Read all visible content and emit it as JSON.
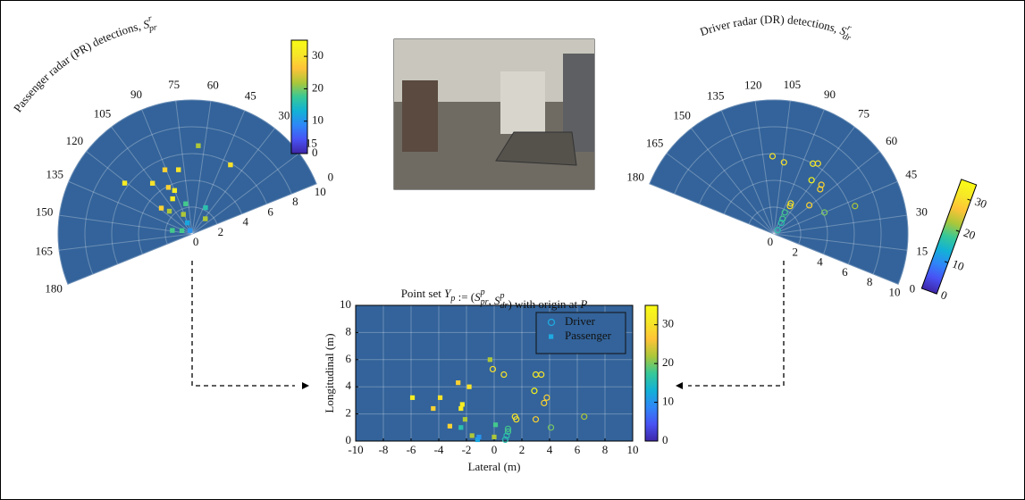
{
  "chart_data": [
    {
      "type": "polar-scatter",
      "title_parts": [
        {
          "text": "Passenger radar (PR) detections, "
        },
        {
          "text": "S",
          "sub": "pr",
          "sup": "r",
          "math": true
        }
      ],
      "thetalim": [
        0,
        180
      ],
      "thetaticks": [
        0,
        15,
        30,
        45,
        60,
        75,
        90,
        105,
        120,
        135,
        150,
        165,
        180
      ],
      "rlim": [
        0,
        10
      ],
      "rticks": [
        0,
        2,
        4,
        6,
        8,
        10
      ],
      "grid": true,
      "marker": "square",
      "colormap": "parula",
      "colorbar": {
        "clim": [
          0,
          35
        ],
        "ticks": [
          0,
          10,
          20,
          30
        ]
      },
      "points": {
        "theta": [
          64,
          121,
          106,
          91,
          80,
          95,
          90,
          97,
          118,
          113,
          92,
          80,
          41,
          27,
          39,
          148,
          140,
          91,
          100
        ],
        "r": [
          6.6,
          6.3,
          4.8,
          5.2,
          4.9,
          3.9,
          3.5,
          3.0,
          3.0,
          2.4,
          1.6,
          2.3,
          2.2,
          1.5,
          5.9,
          1.5,
          0.8,
          0.9,
          0.3
        ],
        "c": [
          22,
          32,
          30,
          28,
          30,
          28,
          32,
          32,
          28,
          22,
          22,
          18,
          16,
          22,
          30,
          18,
          18,
          12,
          10
        ]
      }
    },
    {
      "type": "polar-scatter",
      "title_parts": [
        {
          "text": "Driver radar (DR) detections, "
        },
        {
          "text": "S",
          "sub": "dr",
          "sup": "r",
          "math": true
        }
      ],
      "thetalim": [
        0,
        180
      ],
      "thetaticks": [
        0,
        15,
        30,
        45,
        60,
        75,
        90,
        105,
        120,
        135,
        150,
        165,
        180
      ],
      "rlim": [
        0,
        10
      ],
      "rticks": [
        0,
        2,
        4,
        6,
        8,
        10
      ],
      "grid": true,
      "marker": "circle",
      "colormap": "parula",
      "colorbar": {
        "clim": [
          0,
          35
        ],
        "ticks": [
          0,
          10,
          20,
          30
        ]
      },
      "points": {
        "theta": [
          113,
          104,
          83,
          80,
          77,
          68,
          66,
          83,
          82,
          61,
          45,
          41,
          85,
          82,
          78,
          67
        ],
        "r": [
          5.8,
          5.4,
          6.0,
          6.2,
          4.9,
          5.1,
          4.8,
          2.6,
          2.4,
          3.4,
          4.1,
          6.4,
          1.8,
          1.3,
          1.0,
          0.4
        ],
        "c": [
          30,
          30,
          32,
          30,
          34,
          28,
          28,
          30,
          30,
          28,
          20,
          22,
          18,
          18,
          16,
          16
        ]
      }
    },
    {
      "type": "scatter",
      "title_parts": [
        {
          "text": "Point set "
        },
        {
          "text": "Y",
          "sub": "p",
          "math": true
        },
        {
          "text": " := ("
        },
        {
          "text": "S",
          "sub": "pr",
          "sup": "p",
          "math": true
        },
        {
          "text": ", "
        },
        {
          "text": "S",
          "sub": "dr",
          "sup": "p",
          "math": true
        },
        {
          "text": ") with origin at "
        },
        {
          "text": "P",
          "math": true
        }
      ],
      "xlabel": "Lateral (m)",
      "ylabel": "Longitudinal (m)",
      "xlim": [
        -10,
        10
      ],
      "ylim": [
        0,
        10
      ],
      "xticks": [
        -10,
        -8,
        -6,
        -4,
        -2,
        0,
        2,
        4,
        6,
        8,
        10
      ],
      "yticks": [
        0,
        2,
        4,
        6,
        8,
        10
      ],
      "grid": true,
      "legend": "upper right",
      "colormap": "parula",
      "colorbar": {
        "clim": [
          0,
          35
        ],
        "ticks": [
          0,
          10,
          20,
          30
        ]
      },
      "series": [
        {
          "name": "Driver",
          "marker": "circle",
          "color": "#1fa9e0",
          "x": [
            -0.1,
            0.7,
            3.0,
            3.4,
            2.9,
            3.8,
            3.6,
            1.5,
            1.6,
            3.0,
            4.1,
            6.5,
            1.0,
            1.0,
            0.9,
            0.8
          ],
          "y": [
            5.3,
            4.9,
            4.9,
            4.9,
            3.7,
            3.2,
            2.8,
            1.8,
            1.6,
            1.6,
            1.0,
            1.8,
            0.9,
            0.7,
            0.4,
            0.1
          ],
          "c": [
            30,
            30,
            32,
            30,
            34,
            28,
            28,
            30,
            30,
            28,
            20,
            22,
            18,
            18,
            16,
            16
          ]
        },
        {
          "name": "Passenger",
          "marker": "square",
          "color": "#1fa9e0",
          "x": [
            -0.3,
            -5.9,
            -3.9,
            -2.6,
            -1.8,
            -2.3,
            -2.4,
            -4.4,
            -3.2,
            -2.1,
            -1.6,
            0.1,
            0.0,
            -2.4,
            -1.2,
            -1.1
          ],
          "y": [
            6.0,
            3.2,
            3.2,
            4.3,
            4.0,
            2.7,
            2.4,
            2.4,
            1.1,
            1.6,
            0.4,
            1.2,
            0.3,
            1.0,
            0.1,
            0.3
          ],
          "c": [
            22,
            32,
            30,
            28,
            30,
            32,
            32,
            28,
            28,
            22,
            22,
            18,
            22,
            16,
            12,
            10
          ]
        }
      ]
    }
  ]
}
